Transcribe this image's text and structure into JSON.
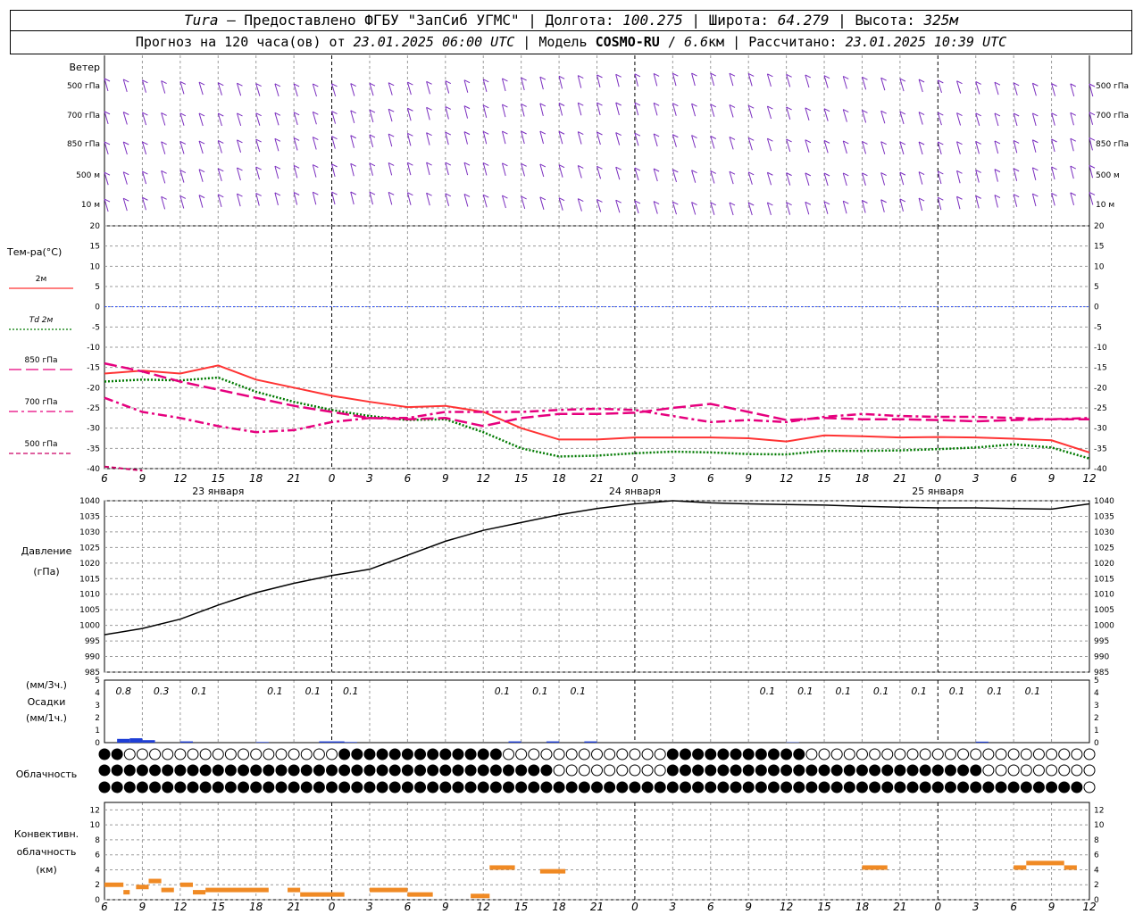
{
  "header": {
    "station": "Tura",
    "dash": "–",
    "provider": "Предоставлено ФГБУ \"ЗапСиб УГМС\"",
    "lon_label": "Долгота:",
    "lon_value": "100.275",
    "lat_label": "Широта:",
    "lat_value": "64.279",
    "alt_label": "Высота:",
    "alt_value": "325м",
    "forecast_label": "Прогноз на 120 часа(ов) от",
    "forecast_start": "23.01.2025 06:00 UTC",
    "model_label": "Модель",
    "model_name": "COSMO-RU",
    "model_res": "6.6",
    "model_res_unit": "км",
    "calc_label": "Рассчитано:",
    "calc_time": "23.01.2025 10:39 UTC"
  },
  "colors": {
    "t2m": "#ff3333",
    "td2m": "#007a00",
    "t850": "#e6007e",
    "t700": "#e6007e",
    "t500": "#cc0066",
    "wind": "#7b2fbf",
    "pressure": "#000000",
    "precip": "#1f3fd6",
    "convective": "#f08a24",
    "zero_line": "#3355ff",
    "grid": "#9a9a9a"
  },
  "time_ticks": [
    "6",
    "9",
    "12",
    "15",
    "18",
    "21",
    "0",
    "3",
    "6",
    "9",
    "12",
    "15",
    "18",
    "21",
    "0",
    "3",
    "6",
    "9",
    "12",
    "15",
    "18",
    "21",
    "0",
    "3",
    "6",
    "9",
    "12"
  ],
  "day_labels": [
    "23 января",
    "24 января",
    "25 января"
  ],
  "chart_data": [
    {
      "type": "line",
      "id": "wind",
      "title": "Ветер",
      "levels": [
        "500 гПа",
        "700 гПа",
        "850 гПа",
        "500 м",
        "10  м"
      ]
    },
    {
      "type": "line",
      "id": "temperature",
      "ylabel": "Тем-ра(°C)",
      "ylim": [
        -40,
        20
      ],
      "yticks": [
        -40,
        -35,
        -30,
        -25,
        -20,
        -15,
        -10,
        -5,
        0,
        5,
        10,
        15,
        20
      ],
      "x_hours": [
        0,
        3,
        6,
        9,
        12,
        15,
        18,
        21,
        24,
        27,
        30,
        33,
        36,
        39,
        42,
        45,
        48,
        51,
        54,
        57,
        60,
        63,
        66,
        69,
        72,
        75,
        78
      ],
      "series": [
        {
          "name": "2м",
          "style": "solid",
          "values": [
            -16.5,
            -15.8,
            -16.5,
            -14.5,
            -18,
            -20,
            -22,
            -23.5,
            -24.8,
            -24.5,
            -26,
            -30,
            -32.8,
            -32.8,
            -32.3,
            -32.3,
            -32.3,
            -32.5,
            -33.3,
            -31.8,
            -32.0,
            -32.3,
            -32.2,
            -32.3,
            -32.6,
            -33.0,
            -36.0
          ]
        },
        {
          "name": "Td 2м",
          "style": "dotted",
          "values": [
            -18.5,
            -18.0,
            -18.2,
            -17.5,
            -21,
            -23.5,
            -25.5,
            -27.0,
            -28.0,
            -27.8,
            -31,
            -35,
            -37.0,
            -36.8,
            -36.2,
            -35.8,
            -36.0,
            -36.4,
            -36.5,
            -35.6,
            -35.6,
            -35.5,
            -35.2,
            -34.8,
            -34.0,
            -34.8,
            -37.5
          ]
        },
        {
          "name": "850 гПа",
          "style": "longdash",
          "values": [
            -14,
            -16,
            -18.5,
            -20.5,
            -22.5,
            -24.5,
            -26,
            -27.5,
            -27.8,
            -27.5,
            -29.5,
            -27.5,
            -26.5,
            -26.5,
            -26.2,
            -25.0,
            -24.0,
            -26.0,
            -28.0,
            -27.5,
            -27.8,
            -27.8,
            -28.0,
            -28.3,
            -28.0,
            -27.8,
            -27.8
          ]
        },
        {
          "name": "700 гПа",
          "style": "dashdot",
          "values": [
            -22.5,
            -26,
            -27.5,
            -29.5,
            -31,
            -30.5,
            -28.5,
            -27.5,
            -27.5,
            -26,
            -26,
            -26,
            -25.5,
            -25.2,
            -25.5,
            -27,
            -28.5,
            -28.0,
            -28.5,
            -27.2,
            -26.5,
            -27.0,
            -27.2,
            -27.2,
            -27.5,
            -27.8,
            -27.5
          ]
        },
        {
          "name": "500 гПа",
          "style": "dashed",
          "values": [
            -39.5,
            -40.5,
            null,
            null,
            null,
            null,
            null,
            null,
            null,
            null,
            null,
            null,
            null,
            null,
            null,
            null,
            null,
            null,
            null,
            null,
            null,
            null,
            null,
            null,
            null,
            null,
            null
          ]
        }
      ]
    },
    {
      "type": "line",
      "id": "pressure",
      "ylabel": "Давление",
      "ylabel2": "(гПа)",
      "ylim": [
        985,
        1040
      ],
      "yticks": [
        985,
        990,
        995,
        1000,
        1005,
        1010,
        1015,
        1020,
        1025,
        1030,
        1035,
        1040
      ],
      "x_hours": [
        0,
        3,
        6,
        9,
        12,
        15,
        18,
        21,
        24,
        27,
        30,
        33,
        36,
        39,
        42,
        45,
        48,
        51,
        54,
        57,
        60,
        63,
        66,
        69,
        72,
        75,
        78
      ],
      "values": [
        997,
        999,
        1002,
        1006.5,
        1010.5,
        1013.5,
        1016,
        1018,
        1022.5,
        1027,
        1030.5,
        1033,
        1035.5,
        1037.5,
        1039,
        1040,
        1039.3,
        1039,
        1038.8,
        1038.6,
        1038.2,
        1037.9,
        1037.7,
        1037.7,
        1037.5,
        1037.3,
        1039
      ]
    },
    {
      "type": "bar",
      "id": "precipitation",
      "ylabel": "(мм/3ч.)",
      "ylabel2": "Осадки",
      "ylabel3": "(мм/1ч.)",
      "ylim": [
        0,
        5
      ],
      "yticks": [
        0,
        1,
        2,
        3,
        4,
        5
      ],
      "bar_values": [
        {
          "h": 1,
          "v": 0.3
        },
        {
          "h": 2,
          "v": 0.35
        },
        {
          "h": 3,
          "v": 0.2
        },
        {
          "h": 6,
          "v": 0.1
        },
        {
          "h": 12,
          "v": 0.05
        },
        {
          "h": 17,
          "v": 0.1
        },
        {
          "h": 18,
          "v": 0.1
        },
        {
          "h": 19,
          "v": 0.05
        },
        {
          "h": 32,
          "v": 0.1
        },
        {
          "h": 35,
          "v": 0.1
        },
        {
          "h": 38,
          "v": 0.1
        },
        {
          "h": 54,
          "v": 0.03
        },
        {
          "h": 69,
          "v": 0.08
        }
      ],
      "accum_labels": [
        {
          "h": 1.5,
          "t": "0.8"
        },
        {
          "h": 4.5,
          "t": "0.3"
        },
        {
          "h": 7.5,
          "t": "0.1"
        },
        {
          "h": 13.5,
          "t": "0.1"
        },
        {
          "h": 16.5,
          "t": "0.1"
        },
        {
          "h": 19.5,
          "t": "0.1"
        },
        {
          "h": 31.5,
          "t": "0.1"
        },
        {
          "h": 34.5,
          "t": "0.1"
        },
        {
          "h": 37.5,
          "t": "0.1"
        },
        {
          "h": 52.5,
          "t": "0.1"
        },
        {
          "h": 55.5,
          "t": "0.1"
        },
        {
          "h": 58.5,
          "t": "0.1"
        },
        {
          "h": 61.5,
          "t": "0.1"
        },
        {
          "h": 64.5,
          "t": "0.1"
        },
        {
          "h": 67.5,
          "t": "0.1"
        },
        {
          "h": 70.5,
          "t": "0.1"
        },
        {
          "h": 73.5,
          "t": "0.1"
        }
      ]
    },
    {
      "type": "table",
      "id": "cloudiness",
      "ylabel": "Облачность",
      "rows": [
        "high",
        "middle",
        "low"
      ]
    },
    {
      "type": "bar",
      "id": "convective",
      "ylabel": "Конвективн.",
      "ylabel2": "облачность",
      "ylabel3": "(км)",
      "ylim": [
        0,
        13
      ],
      "yticks": [
        0,
        2,
        4,
        6,
        8,
        10,
        12
      ],
      "segments": [
        {
          "h0": 0,
          "h1": 1.5,
          "y": 2
        },
        {
          "h0": 1.5,
          "h1": 2,
          "y": 1
        },
        {
          "h0": 2.5,
          "h1": 3.5,
          "y": 1.7
        },
        {
          "h0": 3.5,
          "h1": 4.5,
          "y": 2.5
        },
        {
          "h0": 4.5,
          "h1": 5.5,
          "y": 1.3
        },
        {
          "h0": 6,
          "h1": 7,
          "y": 2
        },
        {
          "h0": 7,
          "h1": 8,
          "y": 1
        },
        {
          "h0": 8,
          "h1": 13,
          "y": 1.3
        },
        {
          "h0": 14.5,
          "h1": 15.5,
          "y": 1.3
        },
        {
          "h0": 15.5,
          "h1": 19,
          "y": 0.7
        },
        {
          "h0": 21,
          "h1": 24,
          "y": 1.3
        },
        {
          "h0": 24,
          "h1": 26,
          "y": 0.7
        },
        {
          "h0": 29,
          "h1": 30.5,
          "y": 0.5
        },
        {
          "h0": 30.5,
          "h1": 32.5,
          "y": 4.3
        },
        {
          "h0": 34.5,
          "h1": 36.5,
          "y": 3.8
        },
        {
          "h0": 60,
          "h1": 62,
          "y": 4.3
        },
        {
          "h0": 72,
          "h1": 73,
          "y": 4.3
        },
        {
          "h0": 73,
          "h1": 76,
          "y": 4.9
        },
        {
          "h0": 76,
          "h1": 77,
          "y": 4.3
        }
      ]
    }
  ]
}
